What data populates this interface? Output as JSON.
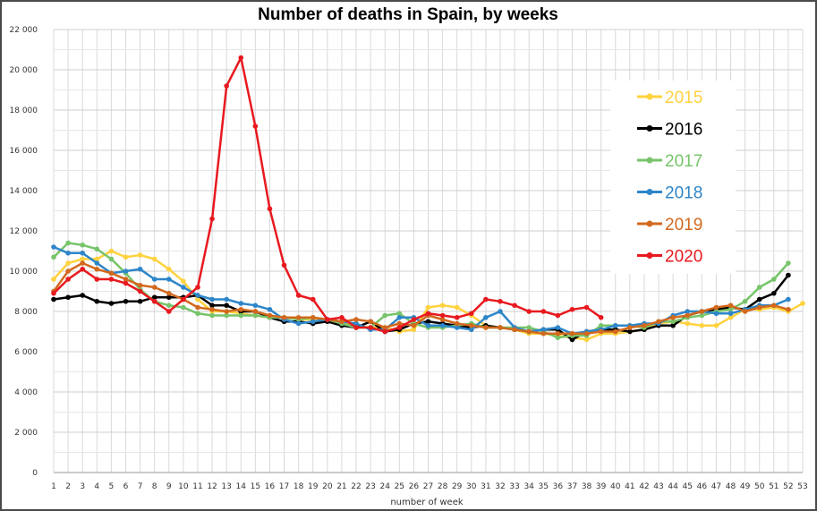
{
  "chart_data": {
    "type": "line",
    "title": "Number of deaths in Spain, by weeks",
    "xlabel": "number of week",
    "ylabel": "",
    "x": [
      1,
      2,
      3,
      4,
      5,
      6,
      7,
      8,
      9,
      10,
      11,
      12,
      13,
      14,
      15,
      16,
      17,
      18,
      19,
      20,
      21,
      22,
      23,
      24,
      25,
      26,
      27,
      28,
      29,
      30,
      31,
      32,
      33,
      34,
      35,
      36,
      37,
      38,
      39,
      40,
      41,
      42,
      43,
      44,
      45,
      46,
      47,
      48,
      49,
      50,
      51,
      52,
      53
    ],
    "xlim": [
      1,
      53
    ],
    "ylim": [
      0,
      22000
    ],
    "yticks": [
      0,
      2000,
      4000,
      6000,
      8000,
      10000,
      12000,
      14000,
      16000,
      18000,
      20000,
      22000
    ],
    "ytick_labels": [
      "0",
      "2 000",
      "4 000",
      "6 000",
      "8 000",
      "10 000",
      "12 000",
      "14 000",
      "16 000",
      "18 000",
      "20 000",
      "22 000"
    ],
    "legend_position": "top-right",
    "grid": true,
    "series": [
      {
        "name": "2015",
        "color": "#FFD23F",
        "values": [
          9600,
          10400,
          10600,
          10600,
          11000,
          10700,
          10800,
          10600,
          10100,
          9500,
          8600,
          8000,
          8000,
          7900,
          7800,
          7700,
          7700,
          7600,
          7600,
          7500,
          7400,
          7300,
          7200,
          7200,
          7000,
          7100,
          8200,
          8300,
          8200,
          7800,
          7300,
          7200,
          7100,
          6900,
          6900,
          6800,
          6700,
          6600,
          6900,
          6900,
          7000,
          7100,
          7400,
          7500,
          7400,
          7300,
          7300,
          7700,
          8100,
          8100,
          8200,
          8000,
          8400
        ]
      },
      {
        "name": "2016",
        "color": "#000000",
        "values": [
          8600,
          8700,
          8800,
          8500,
          8400,
          8500,
          8500,
          8700,
          8700,
          8700,
          8800,
          8300,
          8300,
          8000,
          8000,
          7700,
          7500,
          7500,
          7400,
          7500,
          7300,
          7200,
          7500,
          7000,
          7100,
          7400,
          7500,
          7400,
          7300,
          7200,
          7300,
          7200,
          7100,
          7000,
          7100,
          7100,
          6600,
          7000,
          7100,
          7100,
          7000,
          7100,
          7300,
          7300,
          7800,
          8000,
          8100,
          8200,
          8100,
          8600,
          8900,
          9800,
          null
        ]
      },
      {
        "name": "2017",
        "color": "#77C46A",
        "values": [
          10700,
          11400,
          11300,
          11100,
          10600,
          9900,
          9100,
          8500,
          8300,
          8200,
          7900,
          7800,
          7800,
          7800,
          7800,
          7700,
          7700,
          7600,
          7700,
          7600,
          7400,
          7200,
          7200,
          7800,
          7900,
          7400,
          7200,
          7200,
          7300,
          7400,
          7200,
          7200,
          7200,
          7200,
          7000,
          6700,
          6800,
          6800,
          7300,
          7300,
          7300,
          7200,
          7500,
          7500,
          7700,
          7800,
          8000,
          8100,
          8500,
          9200,
          9600,
          10400,
          null
        ]
      },
      {
        "name": "2018",
        "color": "#2E86C9",
        "values": [
          11200,
          10900,
          10900,
          10400,
          9900,
          10000,
          10100,
          9600,
          9600,
          9200,
          8800,
          8600,
          8600,
          8400,
          8300,
          8100,
          7600,
          7400,
          7500,
          7600,
          7500,
          7400,
          7100,
          7100,
          7700,
          7700,
          7300,
          7300,
          7200,
          7100,
          7700,
          8000,
          7200,
          7000,
          7100,
          7200,
          6900,
          7000,
          7100,
          7300,
          7300,
          7400,
          7400,
          7800,
          8000,
          8000,
          7900,
          7900,
          8100,
          8300,
          8300,
          8600,
          null
        ]
      },
      {
        "name": "2019",
        "color": "#D2691E",
        "values": [
          9000,
          10000,
          10400,
          10100,
          9900,
          9600,
          9300,
          9200,
          8900,
          8600,
          8200,
          8100,
          8000,
          8100,
          8000,
          7800,
          7700,
          7700,
          7700,
          7600,
          7500,
          7600,
          7500,
          7200,
          7400,
          7300,
          7800,
          7600,
          7400,
          7300,
          7200,
          7200,
          7100,
          7000,
          6900,
          6900,
          6900,
          6900,
          7000,
          7000,
          7200,
          7300,
          7500,
          7700,
          7800,
          8000,
          8200,
          8300,
          8000,
          8200,
          8300,
          8100,
          null
        ]
      },
      {
        "name": "2020",
        "color": "#E8191F",
        "values": [
          8900,
          9600,
          10100,
          9600,
          9600,
          9400,
          9000,
          8500,
          8000,
          8600,
          9200,
          12600,
          19200,
          20600,
          17200,
          13100,
          10300,
          8800,
          8600,
          7600,
          7700,
          7200,
          7200,
          7000,
          7200,
          7600,
          7900,
          7800,
          7700,
          7900,
          8600,
          8500,
          8300,
          8000,
          8000,
          7800,
          8100,
          8200,
          7700,
          null,
          null,
          null,
          null,
          null,
          null,
          null,
          null,
          null,
          null,
          null,
          null,
          null,
          null
        ]
      }
    ]
  }
}
